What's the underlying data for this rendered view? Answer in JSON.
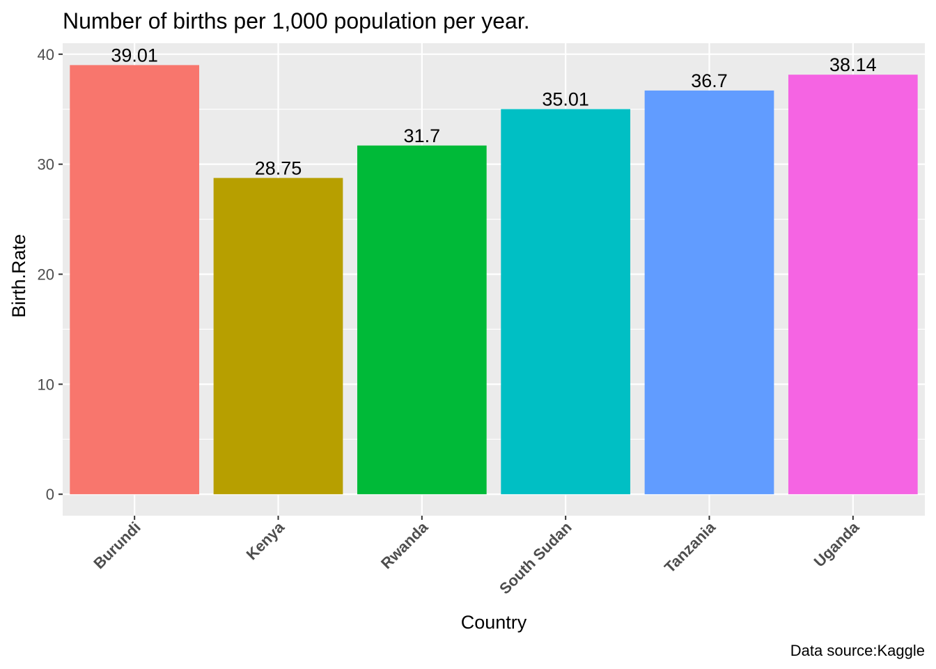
{
  "chart_data": {
    "type": "bar",
    "title": "Number of births per 1,000 population per year.",
    "xlabel": "Country",
    "ylabel": "Birth.Rate",
    "caption": "Data source:Kaggle",
    "categories": [
      "Burundi",
      "Kenya",
      "Rwanda",
      "South Sudan",
      "Tanzania",
      "Uganda"
    ],
    "values": [
      39.01,
      28.75,
      31.7,
      35.01,
      36.7,
      38.14
    ],
    "value_labels": [
      "39.01",
      "28.75",
      "31.7",
      "35.01",
      "36.7",
      "38.14"
    ],
    "colors": [
      "#F8766D",
      "#B79F00",
      "#00BA38",
      "#00BFC4",
      "#619CFF",
      "#F564E3"
    ],
    "yticks": [
      0,
      10,
      20,
      30,
      40
    ],
    "ytick_labels": [
      "0",
      "10",
      "20",
      "30",
      "40"
    ],
    "ylim": [
      -1.95,
      41.0
    ],
    "grid": true,
    "legend": "none"
  }
}
